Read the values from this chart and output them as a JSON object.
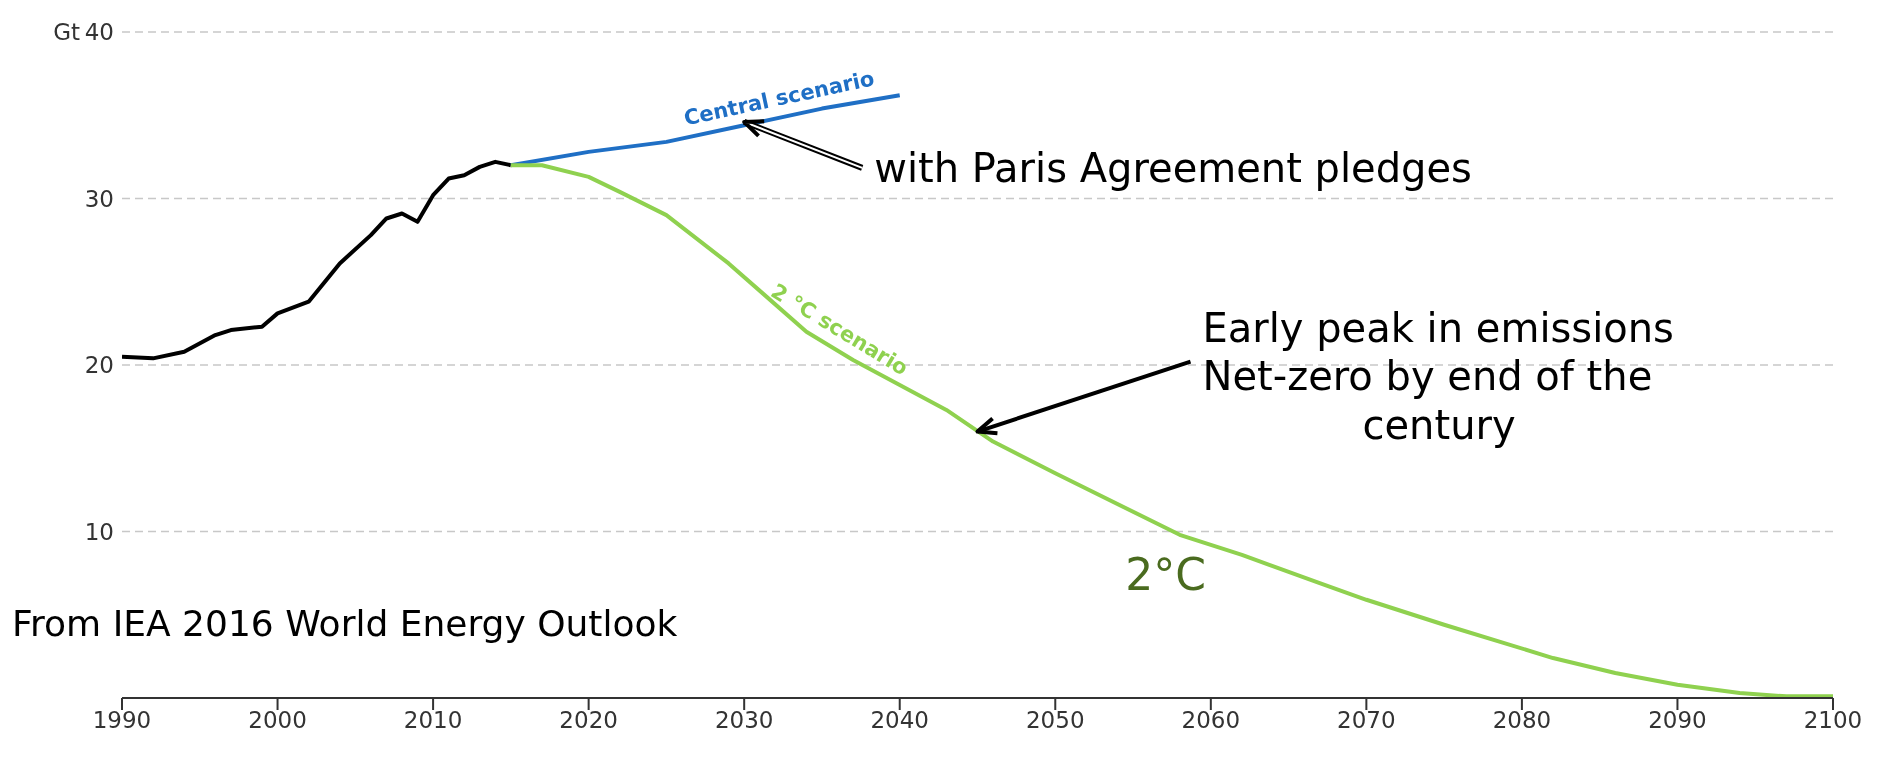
{
  "chart_data": {
    "type": "line",
    "ylabel": "Gt",
    "xlim": [
      1990,
      2100
    ],
    "xticks": [
      1990,
      2000,
      2010,
      2020,
      2030,
      2040,
      2050,
      2060,
      2070,
      2080,
      2090,
      2100
    ],
    "ylim": [
      0,
      40
    ],
    "yticks": [
      10,
      20,
      30,
      40
    ],
    "grid": "y",
    "legend": false,
    "marker": "none",
    "line_style": "solid",
    "series": [
      {
        "color": "#000000",
        "x": [
          1990,
          1992,
          1994,
          1996,
          1997,
          1999,
          2000,
          2002,
          2004,
          2006,
          2007,
          2008,
          2009,
          2010,
          2011,
          2012,
          2013,
          2014,
          2015
        ],
        "values": [
          20.5,
          20.4,
          20.8,
          21.8,
          22.1,
          22.3,
          23.1,
          23.8,
          26.1,
          27.8,
          28.8,
          29.1,
          28.6,
          30.2,
          31.2,
          31.4,
          31.9,
          32.2,
          32.0
        ]
      },
      {
        "name": "Central scenario",
        "color": "#1f6fc5",
        "x": [
          2015,
          2020,
          2025,
          2030,
          2035,
          2040
        ],
        "values": [
          32.0,
          32.8,
          33.4,
          34.4,
          35.4,
          36.2
        ]
      },
      {
        "name": "2 °C scenario",
        "color": "#8fd14f",
        "x": [
          2015,
          2017,
          2020,
          2022,
          2025,
          2029,
          2034,
          2037,
          2043,
          2046,
          2050,
          2058,
          2062,
          2067,
          2070,
          2075,
          2082,
          2086,
          2090,
          2094,
          2097,
          2100
        ],
        "values": [
          32.0,
          32.0,
          31.3,
          30.4,
          29.0,
          26.1,
          22.0,
          20.3,
          17.3,
          15.4,
          13.5,
          9.8,
          8.6,
          6.9,
          5.9,
          4.4,
          2.4,
          1.5,
          0.8,
          0.3,
          0.1,
          0.1
        ]
      }
    ],
    "annotations": [
      {
        "text": "with Paris Agreement pledges",
        "x": 2030,
        "y": 34.6
      },
      {
        "text": "Early peak in emissions\nNet-zero by end of the\ncentury",
        "x": 2045,
        "y": 16.0
      },
      {
        "text": "2°C",
        "x": 2059,
        "y": 9.5
      },
      "From IEA 2016 World Energy Outlook"
    ]
  }
}
